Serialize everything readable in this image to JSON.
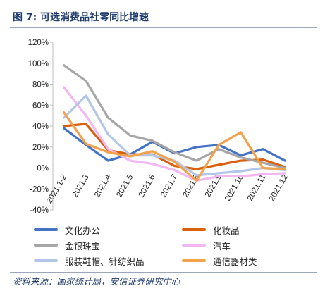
{
  "title": "图 7:  可选消费品社零同比增速",
  "source": "资料来源：国家统计局，安信证券研究中心",
  "chart_data": {
    "type": "line",
    "title": "",
    "xlabel": "",
    "ylabel": "",
    "ylim": [
      -40,
      120
    ],
    "yticks": [
      -40,
      -20,
      0,
      20,
      40,
      60,
      80,
      100,
      120
    ],
    "ytick_labels": [
      "-40%",
      "-20%",
      "0%",
      "20%",
      "40%",
      "60%",
      "80%",
      "100%",
      "120%"
    ],
    "categories": [
      "2021.1-2",
      "2021.3",
      "2021.4",
      "2021.5",
      "2021.6",
      "2021.7",
      "2021.8",
      "2021.9",
      "2021.10",
      "2021.11",
      "2021.12"
    ],
    "legend_position": "bottom",
    "grid": false,
    "series": [
      {
        "name": "文化办公",
        "color": "#4472c4",
        "values": [
          38,
          22,
          7,
          13,
          25,
          14,
          20,
          22,
          12,
          18,
          7
        ]
      },
      {
        "name": "化妆品",
        "color": "#d9600d",
        "values": [
          40,
          42,
          17,
          13,
          13,
          2,
          -1,
          3,
          7,
          8,
          1
        ]
      },
      {
        "name": "金银珠宝",
        "color": "#a6a6a6",
        "values": [
          98,
          83,
          48,
          31,
          26,
          15,
          7,
          18,
          10,
          5,
          0
        ]
      },
      {
        "name": "汽车",
        "color": "#f2b6f0",
        "values": [
          77,
          50,
          18,
          7,
          4,
          -2,
          -12,
          -8,
          -8,
          -6,
          -5
        ]
      },
      {
        "name": "服装鞋帽、针纺织品",
        "color": "#b4c6e7",
        "values": [
          48,
          69,
          32,
          12,
          12,
          7,
          -7,
          -5,
          -3,
          0,
          -2
        ]
      },
      {
        "name": "通信器材类",
        "color": "#f4a14b",
        "values": [
          53,
          23,
          15,
          11,
          16,
          6,
          -12,
          22,
          34,
          0,
          -1
        ]
      }
    ]
  }
}
